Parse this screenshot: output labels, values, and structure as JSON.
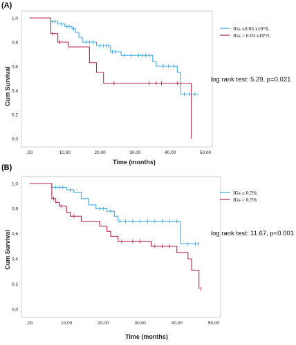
{
  "chart_data": [
    {
      "type": "line",
      "panel_label": "(A)",
      "title": "",
      "xlabel": "Time (months)",
      "ylabel": "Cum Survival",
      "xlim": [
        0,
        50
      ],
      "ylim": [
        0,
        1.0
      ],
      "x_ticks": [
        0,
        10,
        20,
        30,
        40,
        50
      ],
      "x_tick_labels": [
        ",00",
        "10,00",
        "20,00",
        "30,00",
        "40,00",
        "50,00"
      ],
      "y_ticks": [
        0,
        0.2,
        0.4,
        0.6,
        0.8,
        1.0
      ],
      "y_tick_labels": [
        "0,0",
        "0,2",
        "0,4",
        "0,6",
        "0,8",
        "1,0"
      ],
      "grid": false,
      "legend_position": "top-right",
      "annotation": "log rank test: 5.29, p=0.021",
      "series": [
        {
          "name": "IGs ≤0.03 x10⁹/L",
          "color": "#3da9e0",
          "steps": [
            [
              0,
              1.0
            ],
            [
              6,
              1.0
            ],
            [
              6,
              0.97
            ],
            [
              8,
              0.97
            ],
            [
              8,
              0.95
            ],
            [
              10,
              0.95
            ],
            [
              10,
              0.93
            ],
            [
              12,
              0.93
            ],
            [
              12,
              0.91
            ],
            [
              13,
              0.91
            ],
            [
              13,
              0.88
            ],
            [
              14,
              0.88
            ],
            [
              14,
              0.84
            ],
            [
              15,
              0.84
            ],
            [
              15,
              0.8
            ],
            [
              19,
              0.8
            ],
            [
              19,
              0.77
            ],
            [
              23,
              0.77
            ],
            [
              23,
              0.72
            ],
            [
              26,
              0.72
            ],
            [
              26,
              0.69
            ],
            [
              35,
              0.69
            ],
            [
              35,
              0.64
            ],
            [
              36,
              0.64
            ],
            [
              36,
              0.6
            ],
            [
              42,
              0.6
            ],
            [
              42,
              0.55
            ],
            [
              43,
              0.55
            ],
            [
              43,
              0.37
            ],
            [
              48,
              0.37
            ]
          ],
          "censored": [
            [
              6.5,
              0.97
            ],
            [
              7.2,
              0.97
            ],
            [
              9,
              0.95
            ],
            [
              10.5,
              0.93
            ],
            [
              11.2,
              0.93
            ],
            [
              12.5,
              0.91
            ],
            [
              16,
              0.8
            ],
            [
              17,
              0.8
            ],
            [
              18,
              0.8
            ],
            [
              20,
              0.77
            ],
            [
              21,
              0.77
            ],
            [
              21.8,
              0.77
            ],
            [
              22.4,
              0.77
            ],
            [
              23.5,
              0.72
            ],
            [
              24.3,
              0.72
            ],
            [
              27,
              0.69
            ],
            [
              29,
              0.69
            ],
            [
              31,
              0.69
            ],
            [
              32,
              0.69
            ],
            [
              33,
              0.69
            ],
            [
              34,
              0.69
            ],
            [
              38,
              0.6
            ],
            [
              39.5,
              0.6
            ],
            [
              41,
              0.6
            ],
            [
              44,
              0.37
            ],
            [
              45.5,
              0.37
            ],
            [
              47,
              0.37
            ]
          ]
        },
        {
          "name": "IGs > 0.03 x10⁹/L",
          "color": "#b8214a",
          "steps": [
            [
              0,
              1.0
            ],
            [
              6,
              1.0
            ],
            [
              6,
              0.87
            ],
            [
              8,
              0.87
            ],
            [
              8,
              0.8
            ],
            [
              11,
              0.8
            ],
            [
              11,
              0.76
            ],
            [
              17,
              0.76
            ],
            [
              17,
              0.63
            ],
            [
              19,
              0.63
            ],
            [
              19,
              0.55
            ],
            [
              21,
              0.55
            ],
            [
              21,
              0.46
            ],
            [
              46,
              0.46
            ],
            [
              46,
              0.0
            ]
          ],
          "censored": [
            [
              6.5,
              0.87
            ],
            [
              8.5,
              0.8
            ],
            [
              24,
              0.46
            ],
            [
              34,
              0.46
            ],
            [
              36,
              0.46
            ],
            [
              37.5,
              0.46
            ],
            [
              42,
              0.46
            ]
          ]
        }
      ]
    },
    {
      "type": "line",
      "panel_label": "(B)",
      "title": "",
      "xlabel": "Time (months)",
      "ylabel": "Cum Survival",
      "xlim": [
        0,
        50
      ],
      "ylim": [
        0,
        1.0
      ],
      "x_ticks": [
        0,
        10,
        20,
        30,
        40,
        50
      ],
      "x_tick_labels": [
        ",00",
        "10,00",
        "20,00",
        "30,00",
        "40,00",
        "50,00"
      ],
      "y_ticks": [
        0,
        0.2,
        0.4,
        0.6,
        0.8,
        1.0
      ],
      "y_tick_labels": [
        "0,0",
        "0,2",
        "0,4",
        "0,6",
        "0,8",
        "1,0"
      ],
      "grid": false,
      "legend_position": "top-right",
      "annotation": "log rank test: 11.67, p<0.001",
      "series": [
        {
          "name": "IGs ≤ 0.5%",
          "color": "#3da9e0",
          "steps": [
            [
              0,
              1.0
            ],
            [
              6,
              1.0
            ],
            [
              6,
              0.97
            ],
            [
              10,
              0.97
            ],
            [
              10,
              0.95
            ],
            [
              12,
              0.95
            ],
            [
              12,
              0.93
            ],
            [
              14,
              0.93
            ],
            [
              14,
              0.88
            ],
            [
              16,
              0.88
            ],
            [
              16,
              0.83
            ],
            [
              18,
              0.83
            ],
            [
              18,
              0.8
            ],
            [
              21,
              0.8
            ],
            [
              21,
              0.78
            ],
            [
              23,
              0.78
            ],
            [
              23,
              0.74
            ],
            [
              24,
              0.74
            ],
            [
              24,
              0.7
            ],
            [
              41,
              0.7
            ],
            [
              41,
              0.52
            ],
            [
              46,
              0.52
            ]
          ],
          "censored": [
            [
              7,
              0.97
            ],
            [
              8,
              0.97
            ],
            [
              9,
              0.97
            ],
            [
              11,
              0.95
            ],
            [
              19,
              0.8
            ],
            [
              20,
              0.8
            ],
            [
              22,
              0.78
            ],
            [
              24.5,
              0.7
            ],
            [
              26,
              0.7
            ],
            [
              28,
              0.7
            ],
            [
              30,
              0.7
            ],
            [
              32,
              0.7
            ],
            [
              34,
              0.7
            ],
            [
              36,
              0.7
            ],
            [
              38,
              0.7
            ],
            [
              40,
              0.7
            ],
            [
              43,
              0.52
            ],
            [
              45,
              0.52
            ],
            [
              46,
              0.52
            ]
          ]
        },
        {
          "name": "IGs > 0.5%",
          "color": "#b8214a",
          "steps": [
            [
              0,
              1.0
            ],
            [
              6,
              1.0
            ],
            [
              6,
              0.88
            ],
            [
              7,
              0.88
            ],
            [
              7,
              0.85
            ],
            [
              8,
              0.85
            ],
            [
              8,
              0.82
            ],
            [
              10,
              0.82
            ],
            [
              10,
              0.77
            ],
            [
              11,
              0.77
            ],
            [
              11,
              0.74
            ],
            [
              14,
              0.74
            ],
            [
              14,
              0.7
            ],
            [
              19,
              0.7
            ],
            [
              19,
              0.66
            ],
            [
              21,
              0.66
            ],
            [
              21,
              0.62
            ],
            [
              22,
              0.62
            ],
            [
              22,
              0.58
            ],
            [
              24,
              0.58
            ],
            [
              24,
              0.54
            ],
            [
              33,
              0.54
            ],
            [
              33,
              0.5
            ],
            [
              40,
              0.5
            ],
            [
              40,
              0.45
            ],
            [
              43,
              0.45
            ],
            [
              43,
              0.4
            ],
            [
              44,
              0.4
            ],
            [
              44,
              0.31
            ],
            [
              46,
              0.31
            ],
            [
              46,
              0.16
            ]
          ],
          "censored": [
            [
              6.5,
              0.88
            ],
            [
              8.5,
              0.82
            ],
            [
              12,
              0.74
            ],
            [
              25,
              0.54
            ],
            [
              28,
              0.54
            ],
            [
              30,
              0.54
            ],
            [
              34,
              0.5
            ],
            [
              36,
              0.5
            ],
            [
              38,
              0.5
            ],
            [
              46.5,
              0.16
            ]
          ]
        }
      ]
    }
  ]
}
